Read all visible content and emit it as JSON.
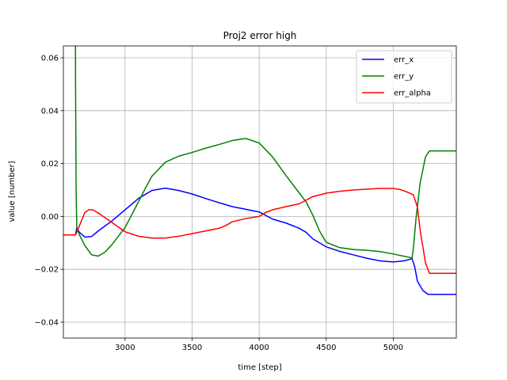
{
  "chart_data": {
    "type": "line",
    "title": "Proj2 error high",
    "xlabel": "time [step]",
    "ylabel": "value [number]",
    "xlim": [
      2540,
      5470
    ],
    "ylim": [
      -0.046,
      0.0645
    ],
    "grid": true,
    "legend_position": "top-right",
    "x_ticks": [
      {
        "value": 3000,
        "label": "3000"
      },
      {
        "value": 3500,
        "label": "3500"
      },
      {
        "value": 4000,
        "label": "4000"
      },
      {
        "value": 4500,
        "label": "4500"
      },
      {
        "value": 5000,
        "label": "5000"
      }
    ],
    "y_ticks": [
      {
        "value": -0.04,
        "label": "−0.04"
      },
      {
        "value": -0.02,
        "label": "−0.02"
      },
      {
        "value": 0.0,
        "label": "0.00"
      },
      {
        "value": 0.02,
        "label": "0.02"
      },
      {
        "value": 0.04,
        "label": "0.04"
      },
      {
        "value": 0.06,
        "label": "0.06"
      }
    ],
    "series": [
      {
        "name": "err_x",
        "color": "#0000ff",
        "points": [
          [
            2540,
            -0.007
          ],
          [
            2630,
            -0.007
          ],
          [
            2640,
            -0.0045
          ],
          [
            2660,
            -0.006
          ],
          [
            2700,
            -0.0078
          ],
          [
            2750,
            -0.0076
          ],
          [
            2800,
            -0.0055
          ],
          [
            2900,
            -0.0018
          ],
          [
            3000,
            0.0025
          ],
          [
            3100,
            0.0068
          ],
          [
            3200,
            0.0098
          ],
          [
            3300,
            0.0107
          ],
          [
            3400,
            0.0098
          ],
          [
            3500,
            0.0085
          ],
          [
            3600,
            0.0068
          ],
          [
            3700,
            0.0052
          ],
          [
            3800,
            0.0037
          ],
          [
            3900,
            0.0027
          ],
          [
            4000,
            0.0017
          ],
          [
            4100,
            -0.001
          ],
          [
            4200,
            -0.0025
          ],
          [
            4300,
            -0.0045
          ],
          [
            4350,
            -0.006
          ],
          [
            4400,
            -0.0085
          ],
          [
            4500,
            -0.0115
          ],
          [
            4600,
            -0.0132
          ],
          [
            4700,
            -0.0145
          ],
          [
            4800,
            -0.0158
          ],
          [
            4900,
            -0.0168
          ],
          [
            5000,
            -0.0172
          ],
          [
            5080,
            -0.0168
          ],
          [
            5140,
            -0.016
          ],
          [
            5160,
            -0.019
          ],
          [
            5180,
            -0.0245
          ],
          [
            5220,
            -0.028
          ],
          [
            5260,
            -0.0295
          ],
          [
            5300,
            -0.0295
          ],
          [
            5470,
            -0.0295
          ]
        ]
      },
      {
        "name": "err_y",
        "color": "#008000",
        "points": [
          [
            2630,
            0.0645
          ],
          [
            2631,
            0.05
          ],
          [
            2633,
            0.03
          ],
          [
            2635,
            0.01
          ],
          [
            2640,
            -0.004
          ],
          [
            2660,
            -0.007
          ],
          [
            2700,
            -0.011
          ],
          [
            2750,
            -0.0145
          ],
          [
            2800,
            -0.015
          ],
          [
            2850,
            -0.0135
          ],
          [
            2900,
            -0.0108
          ],
          [
            3000,
            -0.0042
          ],
          [
            3100,
            0.0055
          ],
          [
            3150,
            0.0105
          ],
          [
            3200,
            0.0152
          ],
          [
            3300,
            0.0205
          ],
          [
            3400,
            0.0228
          ],
          [
            3500,
            0.0242
          ],
          [
            3600,
            0.0258
          ],
          [
            3700,
            0.0272
          ],
          [
            3800,
            0.0287
          ],
          [
            3900,
            0.0295
          ],
          [
            4000,
            0.0278
          ],
          [
            4100,
            0.0225
          ],
          [
            4200,
            0.0155
          ],
          [
            4300,
            0.0088
          ],
          [
            4350,
            0.0055
          ],
          [
            4400,
            0.0005
          ],
          [
            4450,
            -0.0055
          ],
          [
            4500,
            -0.0098
          ],
          [
            4600,
            -0.0118
          ],
          [
            4700,
            -0.0125
          ],
          [
            4800,
            -0.0128
          ],
          [
            4900,
            -0.0133
          ],
          [
            5000,
            -0.0142
          ],
          [
            5140,
            -0.0157
          ],
          [
            5150,
            -0.012
          ],
          [
            5170,
            -0.0005
          ],
          [
            5200,
            0.0125
          ],
          [
            5240,
            0.0225
          ],
          [
            5270,
            0.0248
          ],
          [
            5300,
            0.0248
          ],
          [
            5470,
            0.0248
          ]
        ]
      },
      {
        "name": "err_alpha",
        "color": "#ff0000",
        "points": [
          [
            2540,
            -0.007
          ],
          [
            2630,
            -0.007
          ],
          [
            2640,
            -0.006
          ],
          [
            2660,
            -0.0035
          ],
          [
            2700,
            0.0015
          ],
          [
            2730,
            0.0025
          ],
          [
            2760,
            0.0025
          ],
          [
            2800,
            0.0013
          ],
          [
            2900,
            -0.0022
          ],
          [
            3000,
            -0.0058
          ],
          [
            3100,
            -0.0075
          ],
          [
            3200,
            -0.0082
          ],
          [
            3300,
            -0.0082
          ],
          [
            3400,
            -0.0075
          ],
          [
            3500,
            -0.0065
          ],
          [
            3600,
            -0.0055
          ],
          [
            3700,
            -0.0045
          ],
          [
            3750,
            -0.0035
          ],
          [
            3800,
            -0.002
          ],
          [
            3900,
            -0.0008
          ],
          [
            4000,
            0.0
          ],
          [
            4050,
            0.0015
          ],
          [
            4100,
            0.0025
          ],
          [
            4200,
            0.0037
          ],
          [
            4300,
            0.0048
          ],
          [
            4400,
            0.0075
          ],
          [
            4500,
            0.0088
          ],
          [
            4600,
            0.0095
          ],
          [
            4700,
            0.01
          ],
          [
            4800,
            0.0103
          ],
          [
            4900,
            0.0106
          ],
          [
            5000,
            0.0106
          ],
          [
            5050,
            0.0102
          ],
          [
            5100,
            0.0093
          ],
          [
            5150,
            0.0082
          ],
          [
            5180,
            0.0035
          ],
          [
            5200,
            -0.005
          ],
          [
            5240,
            -0.0175
          ],
          [
            5270,
            -0.0215
          ],
          [
            5300,
            -0.0215
          ],
          [
            5470,
            -0.0215
          ]
        ]
      }
    ]
  }
}
